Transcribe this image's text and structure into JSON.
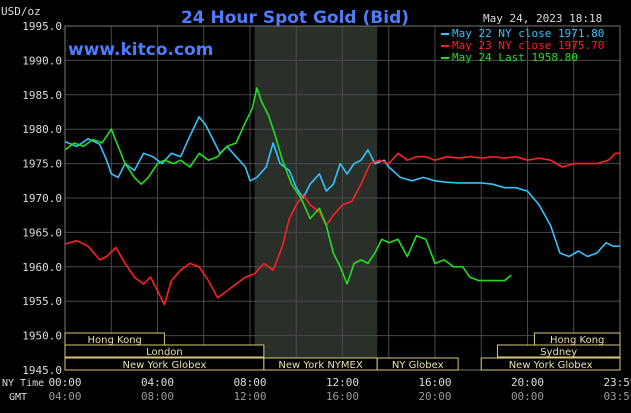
{
  "chart_data": {
    "type": "line",
    "title": "24 Hour Spot Gold (Bid)",
    "watermark": "www.kitco.com",
    "timestamp": "May 24, 2023 18:18",
    "unit_label": "USD/oz",
    "ylim": [
      1945.0,
      1995.0
    ],
    "y_ticks": [
      "1995.0",
      "1990.0",
      "1985.0",
      "1980.0",
      "1975.0",
      "1970.0",
      "1965.0",
      "1960.0",
      "1955.0",
      "1950.0",
      "1945.0"
    ],
    "xlim": [
      0,
      24
    ],
    "x_ticks_ny": [
      "00:00",
      "04:00",
      "08:00",
      "12:00",
      "16:00",
      "20:00",
      "23:59"
    ],
    "x_ticks_gmt": [
      "04:00",
      "08:00",
      "12:00",
      "16:00",
      "20:00",
      "00:00",
      "03:59"
    ],
    "x_tick_hours": [
      0,
      4,
      8,
      12,
      16,
      20,
      24
    ],
    "axis_label_ny": "NY Time",
    "axis_label_gmt": "GMT",
    "shaded_range": [
      8.2,
      13.5
    ],
    "grid": true,
    "legend_position": "top-right",
    "series": [
      {
        "name": "May 22 NY close 1971.80",
        "color": "#33c3ff",
        "points": [
          [
            0,
            1978.2
          ],
          [
            0.5,
            1977.5
          ],
          [
            1,
            1978.6
          ],
          [
            1.5,
            1977.8
          ],
          [
            1.8,
            1975.5
          ],
          [
            2,
            1973.5
          ],
          [
            2.3,
            1973
          ],
          [
            2.6,
            1975
          ],
          [
            3,
            1974
          ],
          [
            3.4,
            1976.5
          ],
          [
            3.8,
            1976
          ],
          [
            4.2,
            1975
          ],
          [
            4.6,
            1976.5
          ],
          [
            5,
            1976
          ],
          [
            5.4,
            1979
          ],
          [
            5.8,
            1981.8
          ],
          [
            6.1,
            1980.5
          ],
          [
            6.4,
            1978.5
          ],
          [
            6.7,
            1976.5
          ],
          [
            7,
            1977.5
          ],
          [
            7.4,
            1976
          ],
          [
            7.8,
            1974.5
          ],
          [
            8,
            1972.5
          ],
          [
            8.3,
            1973
          ],
          [
            8.7,
            1974.5
          ],
          [
            9,
            1978
          ],
          [
            9.3,
            1975
          ],
          [
            9.7,
            1974
          ],
          [
            10,
            1971.5
          ],
          [
            10.3,
            1970
          ],
          [
            10.6,
            1972
          ],
          [
            11,
            1973.5
          ],
          [
            11.3,
            1971
          ],
          [
            11.6,
            1972
          ],
          [
            11.9,
            1975
          ],
          [
            12.2,
            1973.5
          ],
          [
            12.5,
            1975
          ],
          [
            12.8,
            1975.5
          ],
          [
            13.1,
            1977
          ],
          [
            13.4,
            1975
          ],
          [
            13.8,
            1975.5
          ],
          [
            14,
            1974.5
          ],
          [
            14.5,
            1973
          ],
          [
            15,
            1972.5
          ],
          [
            15.5,
            1973
          ],
          [
            16,
            1972.5
          ],
          [
            16.5,
            1972.3
          ],
          [
            17,
            1972.2
          ],
          [
            17.5,
            1972.2
          ],
          [
            18,
            1972.2
          ],
          [
            18.5,
            1972
          ],
          [
            19,
            1971.5
          ],
          [
            19.5,
            1971.5
          ],
          [
            20,
            1971
          ],
          [
            20.5,
            1969
          ],
          [
            21,
            1966
          ],
          [
            21.4,
            1962
          ],
          [
            21.8,
            1961.5
          ],
          [
            22.2,
            1962.3
          ],
          [
            22.6,
            1961.5
          ],
          [
            23,
            1962
          ],
          [
            23.4,
            1963.5
          ],
          [
            23.7,
            1963
          ],
          [
            24,
            1963
          ]
        ]
      },
      {
        "name": "May 23 NY close 1975.70",
        "color": "#ff2020",
        "points": [
          [
            0,
            1963.3
          ],
          [
            0.5,
            1963.8
          ],
          [
            1,
            1963
          ],
          [
            1.5,
            1961
          ],
          [
            1.8,
            1961.5
          ],
          [
            2.2,
            1962.8
          ],
          [
            2.6,
            1960.5
          ],
          [
            3,
            1958.5
          ],
          [
            3.4,
            1957.5
          ],
          [
            3.7,
            1958.5
          ],
          [
            4,
            1956.5
          ],
          [
            4.3,
            1954.5
          ],
          [
            4.6,
            1958
          ],
          [
            5,
            1959.5
          ],
          [
            5.4,
            1960.5
          ],
          [
            5.8,
            1960
          ],
          [
            6.2,
            1958
          ],
          [
            6.6,
            1955.5
          ],
          [
            7,
            1956.5
          ],
          [
            7.4,
            1957.5
          ],
          [
            7.8,
            1958.5
          ],
          [
            8.2,
            1959
          ],
          [
            8.6,
            1960.5
          ],
          [
            9,
            1959.5
          ],
          [
            9.4,
            1963
          ],
          [
            9.7,
            1967
          ],
          [
            10,
            1969
          ],
          [
            10.3,
            1970.5
          ],
          [
            10.6,
            1969
          ],
          [
            11,
            1968
          ],
          [
            11.3,
            1966
          ],
          [
            11.6,
            1967.5
          ],
          [
            12,
            1969
          ],
          [
            12.4,
            1969.5
          ],
          [
            12.8,
            1972
          ],
          [
            13.2,
            1975
          ],
          [
            13.6,
            1975.5
          ],
          [
            14,
            1975
          ],
          [
            14.4,
            1976.5
          ],
          [
            14.8,
            1975.5
          ],
          [
            15.2,
            1976
          ],
          [
            15.6,
            1976
          ],
          [
            16,
            1975.5
          ],
          [
            16.5,
            1976
          ],
          [
            17,
            1975.8
          ],
          [
            17.5,
            1976
          ],
          [
            18,
            1975.8
          ],
          [
            18.5,
            1976
          ],
          [
            19,
            1975.8
          ],
          [
            19.5,
            1976
          ],
          [
            20,
            1975.5
          ],
          [
            20.5,
            1975.8
          ],
          [
            21,
            1975.5
          ],
          [
            21.5,
            1974.5
          ],
          [
            22,
            1975
          ],
          [
            22.5,
            1975
          ],
          [
            23,
            1975
          ],
          [
            23.5,
            1975.5
          ],
          [
            23.8,
            1976.5
          ],
          [
            24,
            1976.5
          ]
        ]
      },
      {
        "name": "May 24 Last 1958.80",
        "color": "#22dd22",
        "points": [
          [
            0,
            1977
          ],
          [
            0.4,
            1978
          ],
          [
            0.8,
            1977.5
          ],
          [
            1.2,
            1978.5
          ],
          [
            1.6,
            1978
          ],
          [
            2,
            1980
          ],
          [
            2.3,
            1977.5
          ],
          [
            2.6,
            1975
          ],
          [
            3,
            1973
          ],
          [
            3.3,
            1972
          ],
          [
            3.6,
            1973
          ],
          [
            4,
            1975
          ],
          [
            4.3,
            1975.5
          ],
          [
            4.7,
            1975
          ],
          [
            5,
            1975.5
          ],
          [
            5.4,
            1974.5
          ],
          [
            5.8,
            1976.5
          ],
          [
            6.2,
            1975.5
          ],
          [
            6.6,
            1976
          ],
          [
            7,
            1977.5
          ],
          [
            7.4,
            1978
          ],
          [
            7.8,
            1981
          ],
          [
            8.1,
            1983
          ],
          [
            8.3,
            1986
          ],
          [
            8.5,
            1984
          ],
          [
            8.8,
            1982
          ],
          [
            9.1,
            1979
          ],
          [
            9.4,
            1975.5
          ],
          [
            9.8,
            1972
          ],
          [
            10.2,
            1970
          ],
          [
            10.6,
            1967
          ],
          [
            11,
            1968.5
          ],
          [
            11.3,
            1966
          ],
          [
            11.6,
            1962
          ],
          [
            11.9,
            1960
          ],
          [
            12.2,
            1957.5
          ],
          [
            12.5,
            1960.5
          ],
          [
            12.8,
            1961
          ],
          [
            13.1,
            1960.5
          ],
          [
            13.4,
            1962
          ],
          [
            13.7,
            1964
          ],
          [
            14,
            1963.5
          ],
          [
            14.4,
            1964
          ],
          [
            14.8,
            1961.5
          ],
          [
            15.2,
            1964.5
          ],
          [
            15.6,
            1964
          ],
          [
            16,
            1960.5
          ],
          [
            16.4,
            1961
          ],
          [
            16.8,
            1960
          ],
          [
            17.2,
            1960
          ],
          [
            17.5,
            1958.5
          ],
          [
            17.9,
            1958
          ],
          [
            18.3,
            1958
          ],
          [
            18.7,
            1958
          ],
          [
            19,
            1958
          ],
          [
            19.3,
            1958.8
          ]
        ]
      }
    ],
    "sessions": [
      {
        "label": "Hong Kong",
        "start": 0.0,
        "end": 4.3,
        "row": 0
      },
      {
        "label": "London",
        "start": 0.0,
        "end": 8.6,
        "row": 1
      },
      {
        "label": "New York Globex",
        "start": 0.0,
        "end": 8.6,
        "row": 2
      },
      {
        "label": "New York NYMEX",
        "start": 8.6,
        "end": 13.5,
        "row": 2
      },
      {
        "label": "NY Globex",
        "start": 13.5,
        "end": 17.0,
        "row": 2
      },
      {
        "label": "Hong Kong",
        "start": 20.3,
        "end": 24.0,
        "row": 0
      },
      {
        "label": "Sydney",
        "start": 18.7,
        "end": 24.0,
        "row": 1
      },
      {
        "label": "New York Globex",
        "start": 18.0,
        "end": 24.0,
        "row": 2
      }
    ],
    "colors": {
      "background": "#000000",
      "grid": "#4a4a4a",
      "shade": "#2a2f2a",
      "title": "#4f7bff",
      "watermark": "#4f7bff",
      "text": "#dddddd",
      "session_box": "#d8c97a",
      "session_text": "#e8e0b0"
    }
  }
}
